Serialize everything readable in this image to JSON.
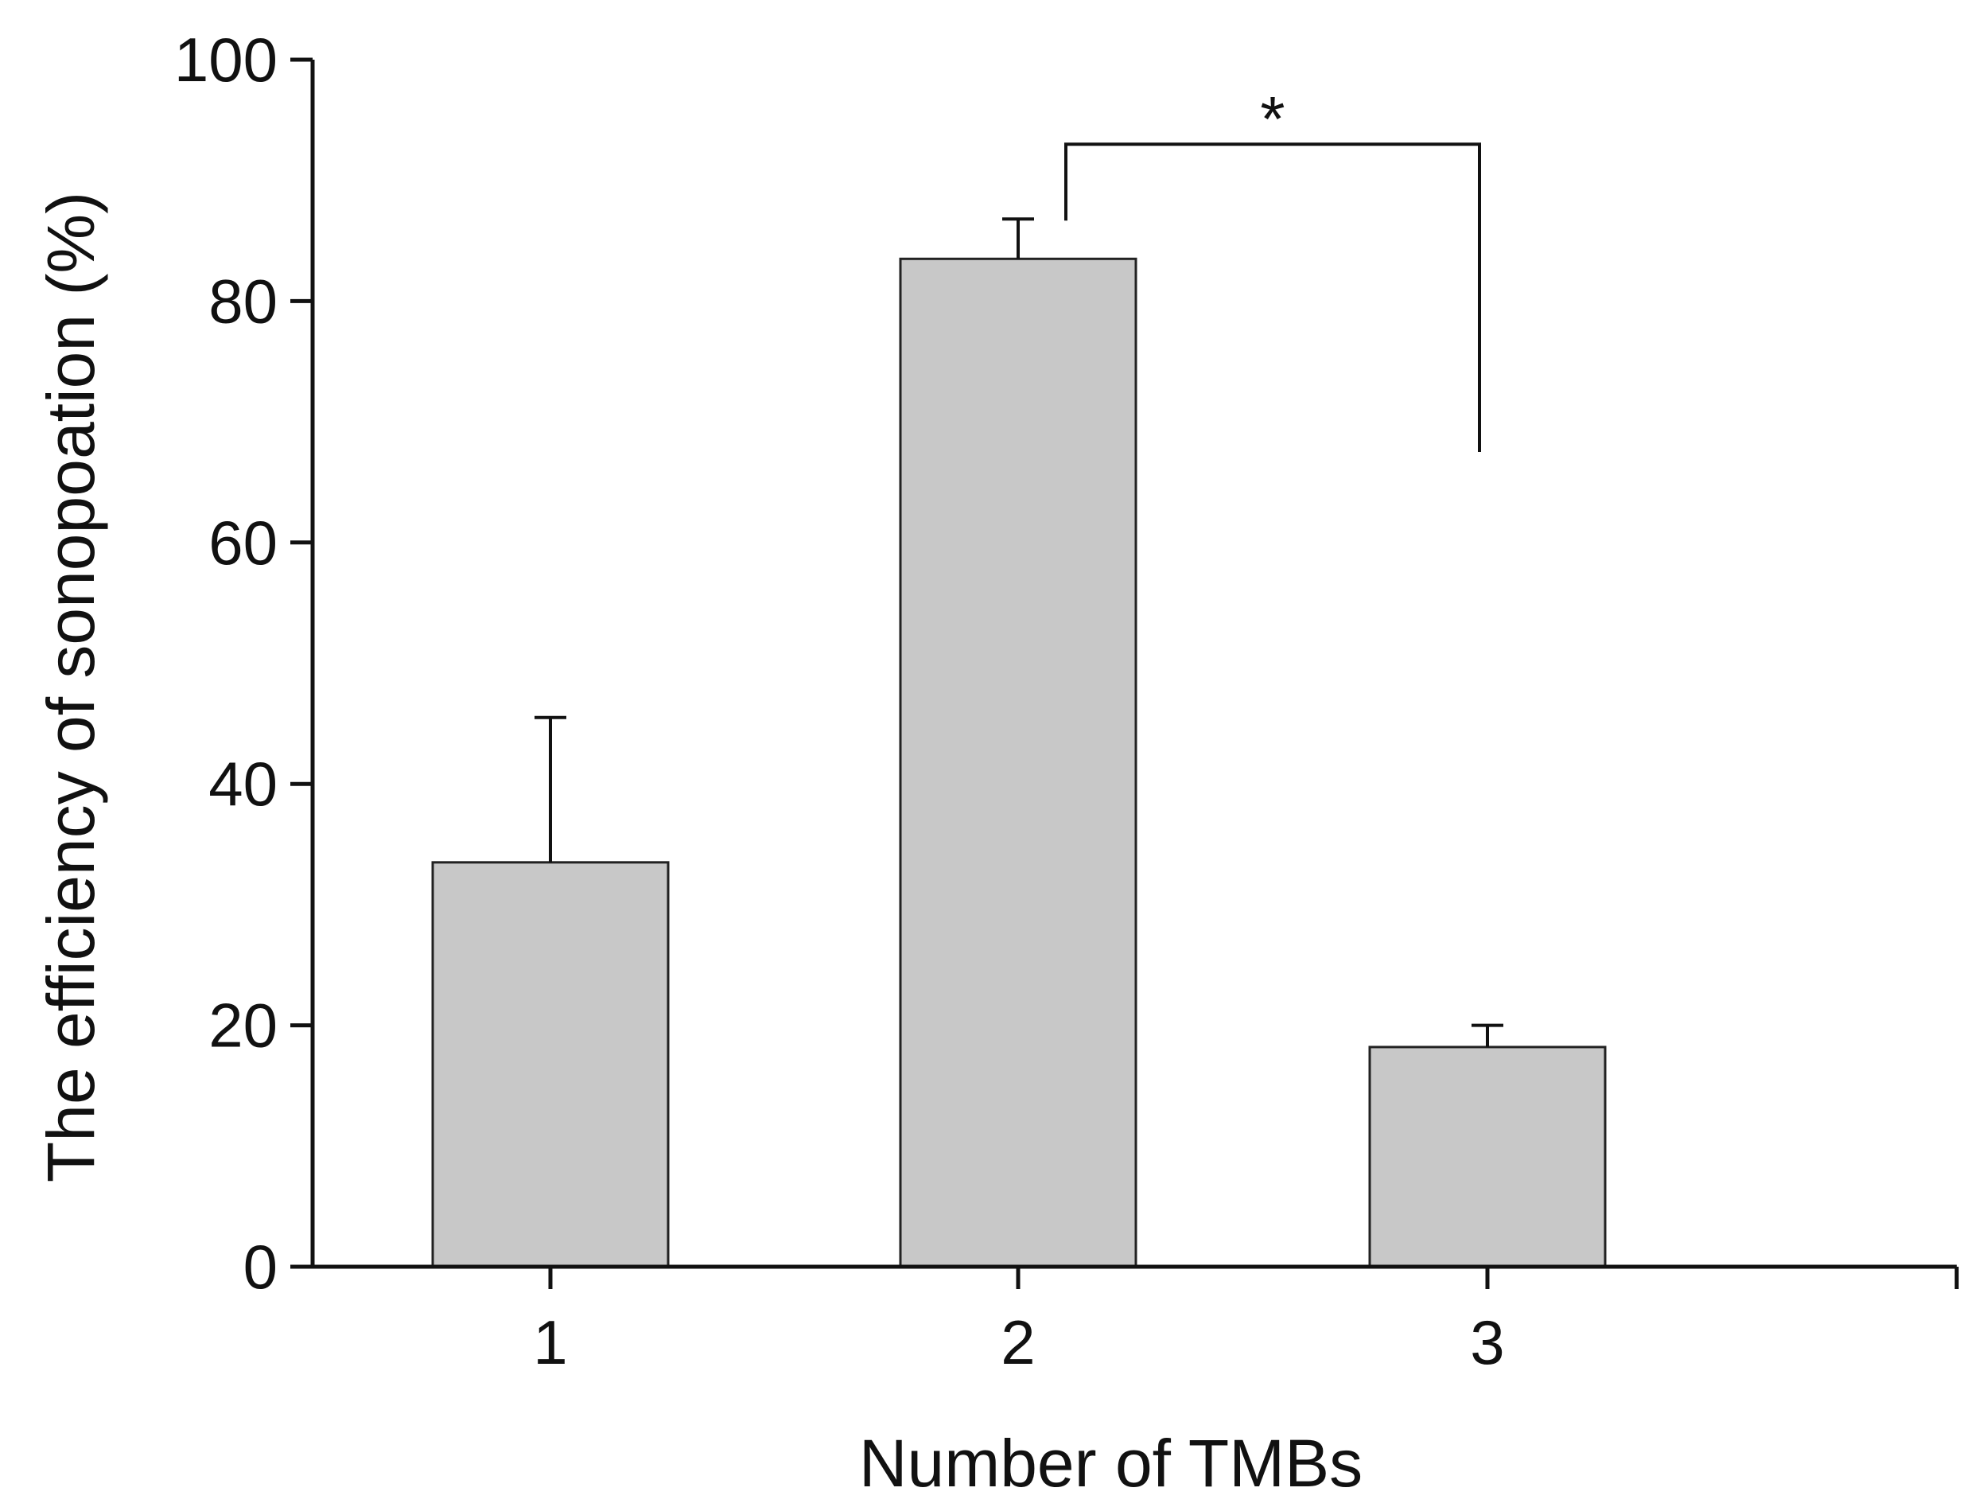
{
  "chart_data": {
    "type": "bar",
    "xlabel": "Number of TMBs",
    "ylabel": "The efficiency of sonopoation (%)",
    "categories": [
      "1",
      "2",
      "3"
    ],
    "values": [
      33.5,
      83.5,
      18.2
    ],
    "error_bars": [
      12,
      3.3,
      1.8
    ],
    "ylim": [
      0,
      100
    ],
    "yticks": [
      "0",
      "20",
      "40",
      "60",
      "80",
      "100"
    ],
    "bar_color": "#c8c8c8",
    "grid": false,
    "significance": {
      "label": "*",
      "between": [
        "2",
        "3"
      ],
      "y": 93
    }
  }
}
